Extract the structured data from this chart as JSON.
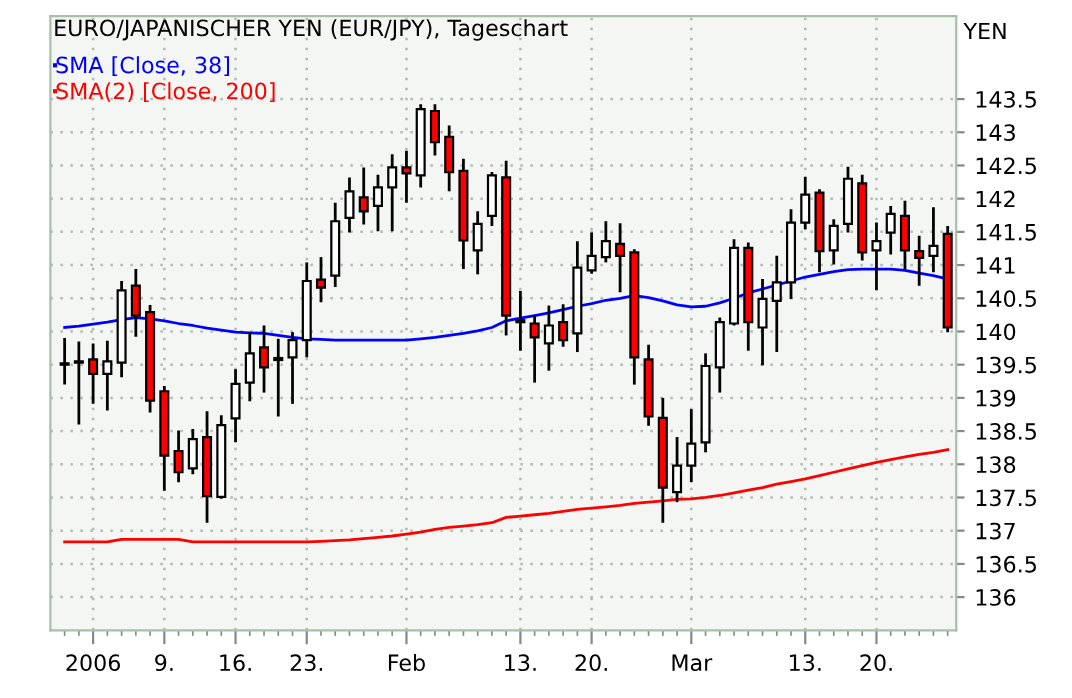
{
  "chart_data": {
    "type": "candlestick",
    "title": "EURO/JAPANISCHER YEN (EUR/JPY), Tageschart",
    "ylabel": "YEN",
    "categories": [
      null,
      null,
      "2006",
      null,
      null,
      null,
      null,
      "9.",
      null,
      null,
      null,
      null,
      "16.",
      null,
      null,
      null,
      null,
      "23.",
      null,
      null,
      null,
      null,
      null,
      null,
      "Feb",
      null,
      null,
      null,
      null,
      null,
      null,
      null,
      "13.",
      null,
      null,
      null,
      null,
      "20.",
      null,
      null,
      null,
      null,
      null,
      null,
      "Mar",
      null,
      null,
      null,
      null,
      null,
      null,
      null,
      "13.",
      null,
      null,
      null,
      null,
      "20.",
      null,
      null,
      null,
      null,
      null
    ],
    "ohlc": [
      [
        139.5,
        139.9,
        139.2,
        139.52
      ],
      [
        139.53,
        139.85,
        138.6,
        139.55
      ],
      [
        139.58,
        139.82,
        138.91,
        139.36
      ],
      [
        139.36,
        139.86,
        138.81,
        139.55
      ],
      [
        139.53,
        140.76,
        139.31,
        140.62
      ],
      [
        140.69,
        140.94,
        139.92,
        140.24
      ],
      [
        140.29,
        140.4,
        138.78,
        138.96
      ],
      [
        139.1,
        139.18,
        137.6,
        138.13
      ],
      [
        138.2,
        138.51,
        137.73,
        137.88
      ],
      [
        137.94,
        138.53,
        137.85,
        138.38
      ],
      [
        138.41,
        138.8,
        137.12,
        137.52
      ],
      [
        137.51,
        138.74,
        137.48,
        138.59
      ],
      [
        138.69,
        139.43,
        138.33,
        139.21
      ],
      [
        139.23,
        139.99,
        138.95,
        139.67
      ],
      [
        139.76,
        140.09,
        139.08,
        139.46
      ],
      [
        139.57,
        139.89,
        138.72,
        139.6
      ],
      [
        139.61,
        139.99,
        138.91,
        139.87
      ],
      [
        139.87,
        141.04,
        139.61,
        140.76
      ],
      [
        140.78,
        141.12,
        140.44,
        140.66
      ],
      [
        140.84,
        141.94,
        140.67,
        141.66
      ],
      [
        141.71,
        142.32,
        141.49,
        142.11
      ],
      [
        142.02,
        142.47,
        141.61,
        141.81
      ],
      [
        141.89,
        142.36,
        141.51,
        142.17
      ],
      [
        142.17,
        142.67,
        141.51,
        142.47
      ],
      [
        142.47,
        142.72,
        141.94,
        142.38
      ],
      [
        142.35,
        143.42,
        142.17,
        143.35
      ],
      [
        143.32,
        143.42,
        142.65,
        142.85
      ],
      [
        142.93,
        143.1,
        142.11,
        142.4
      ],
      [
        142.42,
        142.6,
        140.94,
        141.37
      ],
      [
        141.22,
        141.81,
        140.86,
        141.62
      ],
      [
        141.74,
        142.4,
        141.59,
        142.35
      ],
      [
        142.32,
        142.57,
        139.94,
        140.24
      ],
      [
        140.17,
        140.61,
        139.71,
        140.14
      ],
      [
        140.12,
        140.24,
        139.23,
        139.91
      ],
      [
        139.82,
        140.39,
        139.41,
        140.09
      ],
      [
        140.14,
        140.41,
        139.77,
        139.87
      ],
      [
        139.97,
        141.36,
        139.69,
        140.96
      ],
      [
        140.92,
        141.49,
        140.87,
        141.14
      ],
      [
        141.12,
        141.66,
        141.04,
        141.36
      ],
      [
        141.32,
        141.63,
        140.59,
        141.14
      ],
      [
        141.19,
        141.24,
        139.2,
        139.61
      ],
      [
        139.58,
        139.8,
        138.58,
        138.72
      ],
      [
        138.7,
        139.0,
        137.12,
        137.65
      ],
      [
        137.58,
        138.41,
        137.43,
        137.98
      ],
      [
        137.98,
        138.83,
        137.73,
        138.31
      ],
      [
        138.33,
        139.67,
        138.18,
        139.48
      ],
      [
        139.46,
        140.21,
        139.08,
        140.14
      ],
      [
        140.12,
        141.39,
        140.09,
        141.26
      ],
      [
        141.26,
        141.34,
        139.71,
        140.14
      ],
      [
        140.06,
        140.79,
        139.49,
        140.49
      ],
      [
        140.46,
        141.14,
        139.69,
        140.74
      ],
      [
        140.74,
        141.84,
        140.49,
        141.64
      ],
      [
        141.64,
        142.33,
        141.54,
        142.06
      ],
      [
        142.09,
        142.14,
        140.89,
        141.21
      ],
      [
        141.22,
        141.69,
        141.01,
        141.59
      ],
      [
        141.62,
        142.48,
        141.49,
        142.3
      ],
      [
        142.23,
        142.36,
        141.07,
        141.19
      ],
      [
        141.22,
        141.64,
        140.62,
        141.36
      ],
      [
        141.49,
        141.89,
        141.16,
        141.77
      ],
      [
        141.74,
        141.97,
        140.94,
        141.22
      ],
      [
        141.21,
        141.44,
        140.69,
        141.11
      ],
      [
        141.14,
        141.87,
        140.89,
        141.29
      ],
      [
        141.47,
        141.59,
        139.99,
        140.06
      ]
    ],
    "series": [
      {
        "name": "SMA [Close, 38]",
        "type": "line",
        "color": "#0000ff",
        "values": [
          140.06,
          140.08,
          140.11,
          140.14,
          140.18,
          140.21,
          140.19,
          140.16,
          140.12,
          140.09,
          140.05,
          140.02,
          139.99,
          139.98,
          139.97,
          139.94,
          139.91,
          139.89,
          139.88,
          139.87,
          139.87,
          139.87,
          139.87,
          139.87,
          139.87,
          139.89,
          139.91,
          139.94,
          139.97,
          140.01,
          140.06,
          140.16,
          140.2,
          140.24,
          140.28,
          140.33,
          140.38,
          140.42,
          140.47,
          140.5,
          140.54,
          140.51,
          140.46,
          140.4,
          140.37,
          140.38,
          140.43,
          140.5,
          140.58,
          140.64,
          140.7,
          140.76,
          140.82,
          140.86,
          140.9,
          140.93,
          140.94,
          140.94,
          140.94,
          140.92,
          140.88,
          140.84,
          140.79
        ]
      },
      {
        "name": "SMA(2) [Close, 200]",
        "type": "line",
        "color": "#ff0000",
        "values": [
          136.83,
          136.83,
          136.83,
          136.83,
          136.87,
          136.87,
          136.87,
          136.87,
          136.87,
          136.83,
          136.83,
          136.83,
          136.83,
          136.83,
          136.83,
          136.83,
          136.83,
          136.83,
          136.84,
          136.85,
          136.86,
          136.88,
          136.9,
          136.92,
          136.95,
          136.98,
          137.02,
          137.05,
          137.07,
          137.09,
          137.12,
          137.2,
          137.22,
          137.24,
          137.26,
          137.29,
          137.32,
          137.34,
          137.36,
          137.38,
          137.41,
          137.43,
          137.45,
          137.47,
          137.48,
          137.5,
          137.53,
          137.57,
          137.61,
          137.65,
          137.7,
          137.74,
          137.78,
          137.83,
          137.88,
          137.93,
          137.98,
          138.03,
          138.07,
          138.11,
          138.15,
          138.18,
          138.22
        ]
      }
    ],
    "ylim": [
      135.5,
      144.75
    ],
    "yticks": [
      136,
      136.5,
      137,
      137.5,
      138,
      138.5,
      139,
      139.5,
      140,
      140.5,
      141,
      141.5,
      142,
      142.5,
      143,
      143.5
    ],
    "grid": true,
    "legend": "top left"
  }
}
